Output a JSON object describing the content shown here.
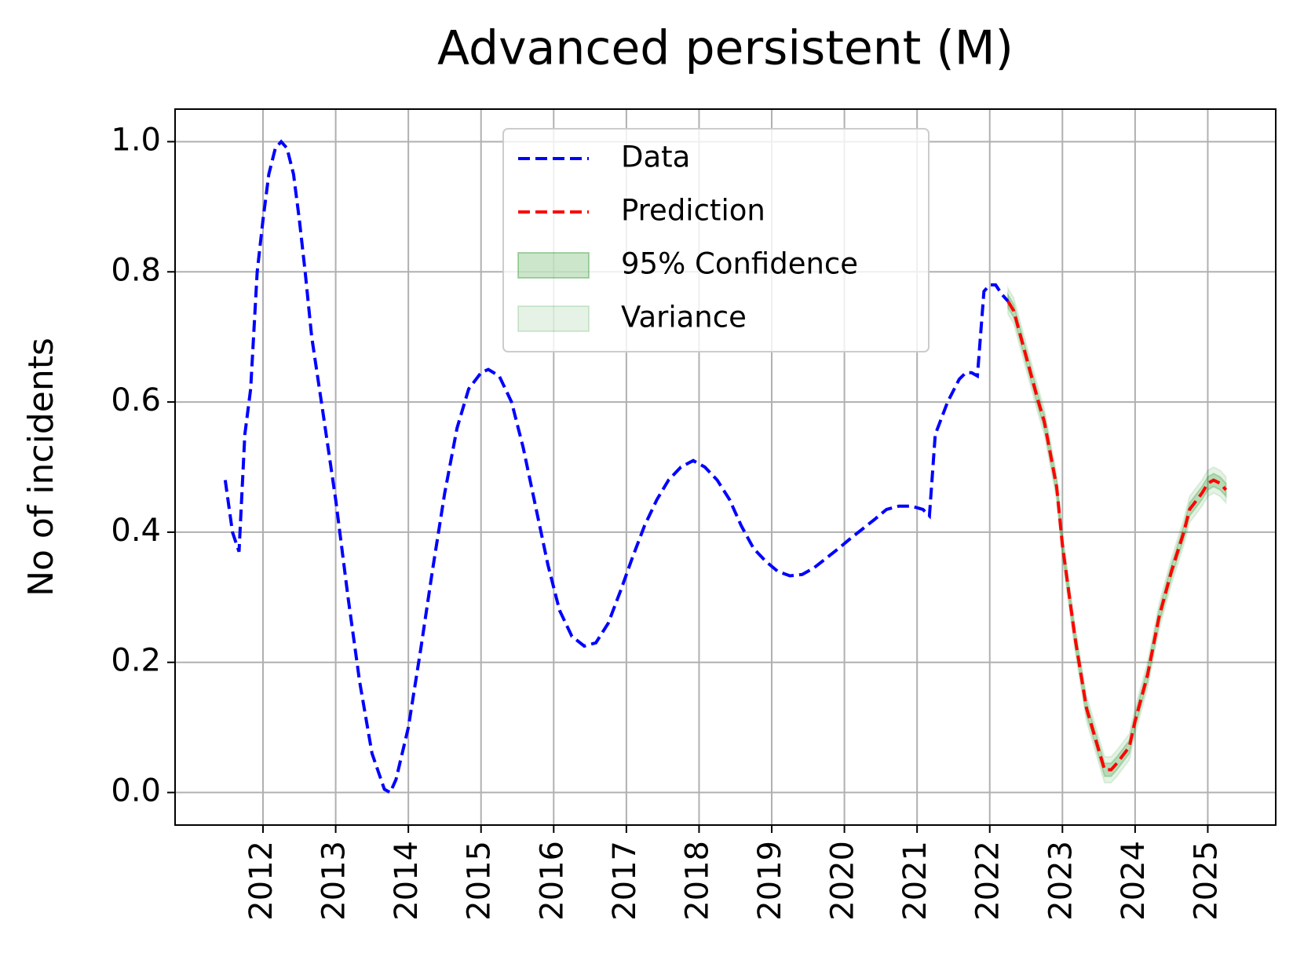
{
  "chart_data": {
    "type": "line",
    "title": "Advanced persistent (M)",
    "y_label": "No of incidents",
    "series": [
      {
        "name": "Data",
        "color": "#0000ff",
        "x": [
          2011.48,
          2011.58,
          2011.67,
          2011.75,
          2011.83,
          2011.92,
          2012.0,
          2012.08,
          2012.17,
          2012.25,
          2012.33,
          2012.42,
          2012.5,
          2012.58,
          2012.67,
          2012.83,
          2013.0,
          2013.17,
          2013.33,
          2013.5,
          2013.67,
          2013.75,
          2013.83,
          2014.0,
          2014.17,
          2014.33,
          2014.5,
          2014.67,
          2014.83,
          2015.0,
          2015.1,
          2015.25,
          2015.42,
          2015.58,
          2015.75,
          2015.92,
          2016.08,
          2016.25,
          2016.42,
          2016.58,
          2016.75,
          2016.92,
          2017.08,
          2017.25,
          2017.42,
          2017.58,
          2017.75,
          2017.92,
          2018.08,
          2018.25,
          2018.42,
          2018.58,
          2018.75,
          2018.92,
          2019.08,
          2019.25,
          2019.42,
          2019.58,
          2019.75,
          2019.92,
          2020.08,
          2020.25,
          2020.42,
          2020.58,
          2020.75,
          2020.92,
          2021.08,
          2021.17,
          2021.25,
          2021.42,
          2021.58,
          2021.67,
          2021.75,
          2021.83,
          2021.92,
          2022.0,
          2022.08,
          2022.17,
          2022.25
        ],
        "values": [
          0.48,
          0.4,
          0.37,
          0.55,
          0.62,
          0.8,
          0.88,
          0.95,
          0.99,
          1.0,
          0.99,
          0.95,
          0.88,
          0.8,
          0.7,
          0.58,
          0.45,
          0.3,
          0.17,
          0.06,
          0.005,
          0.0,
          0.02,
          0.1,
          0.22,
          0.34,
          0.46,
          0.56,
          0.62,
          0.645,
          0.65,
          0.64,
          0.6,
          0.53,
          0.44,
          0.35,
          0.28,
          0.24,
          0.225,
          0.23,
          0.26,
          0.31,
          0.36,
          0.41,
          0.45,
          0.48,
          0.5,
          0.51,
          0.5,
          0.48,
          0.45,
          0.41,
          0.375,
          0.355,
          0.34,
          0.333,
          0.335,
          0.345,
          0.36,
          0.375,
          0.39,
          0.405,
          0.42,
          0.435,
          0.44,
          0.44,
          0.435,
          0.425,
          0.55,
          0.6,
          0.635,
          0.645,
          0.645,
          0.64,
          0.77,
          0.78,
          0.78,
          0.765,
          0.755
        ]
      },
      {
        "name": "Prediction",
        "color": "#ff0000",
        "x": [
          2022.25,
          2022.33,
          2022.5,
          2022.67,
          2022.75,
          2022.92,
          2023.0,
          2023.17,
          2023.33,
          2023.5,
          2023.58,
          2023.67,
          2023.75,
          2023.92,
          2024.0,
          2024.17,
          2024.33,
          2024.5,
          2024.67,
          2024.75,
          2024.92,
          2025.0,
          2025.08,
          2025.17,
          2025.25
        ],
        "values": [
          0.755,
          0.74,
          0.67,
          0.6,
          0.57,
          0.47,
          0.38,
          0.24,
          0.13,
          0.065,
          0.035,
          0.035,
          0.045,
          0.07,
          0.11,
          0.18,
          0.27,
          0.34,
          0.4,
          0.435,
          0.46,
          0.475,
          0.48,
          0.475,
          0.465
        ]
      }
    ],
    "bands": [
      {
        "name": "95% Confidence",
        "color": "#008000",
        "alpha": 0.2,
        "lower": [
          0.745,
          0.73,
          0.66,
          0.59,
          0.56,
          0.46,
          0.37,
          0.23,
          0.12,
          0.055,
          0.025,
          0.025,
          0.035,
          0.06,
          0.1,
          0.17,
          0.26,
          0.33,
          0.39,
          0.425,
          0.45,
          0.465,
          0.47,
          0.465,
          0.455
        ],
        "upper": [
          0.765,
          0.75,
          0.68,
          0.61,
          0.58,
          0.48,
          0.39,
          0.25,
          0.14,
          0.075,
          0.045,
          0.045,
          0.055,
          0.08,
          0.12,
          0.19,
          0.28,
          0.35,
          0.41,
          0.445,
          0.47,
          0.485,
          0.49,
          0.485,
          0.475
        ]
      },
      {
        "name": "Variance",
        "color": "#008000",
        "alpha": 0.1,
        "lower": [
          0.735,
          0.72,
          0.65,
          0.58,
          0.55,
          0.45,
          0.36,
          0.22,
          0.11,
          0.045,
          0.015,
          0.015,
          0.025,
          0.05,
          0.09,
          0.16,
          0.25,
          0.32,
          0.38,
          0.415,
          0.44,
          0.455,
          0.46,
          0.455,
          0.445
        ],
        "upper": [
          0.775,
          0.76,
          0.69,
          0.62,
          0.59,
          0.49,
          0.4,
          0.26,
          0.15,
          0.085,
          0.055,
          0.055,
          0.065,
          0.09,
          0.13,
          0.2,
          0.29,
          0.36,
          0.42,
          0.455,
          0.48,
          0.495,
          0.5,
          0.495,
          0.485
        ]
      }
    ],
    "xlim": [
      2010.79,
      2025.935
    ],
    "xticks": [
      2012,
      2013,
      2014,
      2015,
      2016,
      2017,
      2018,
      2019,
      2020,
      2021,
      2022,
      2023,
      2024,
      2025
    ],
    "ylim": [
      -0.05,
      1.05
    ],
    "yticks": [
      {
        "value": 0,
        "label": "0.0"
      },
      0.2,
      0.4,
      0.6,
      0.8,
      {
        "value": 1,
        "label": "1.0"
      }
    ],
    "grid": true,
    "legend_position": "upper center"
  }
}
